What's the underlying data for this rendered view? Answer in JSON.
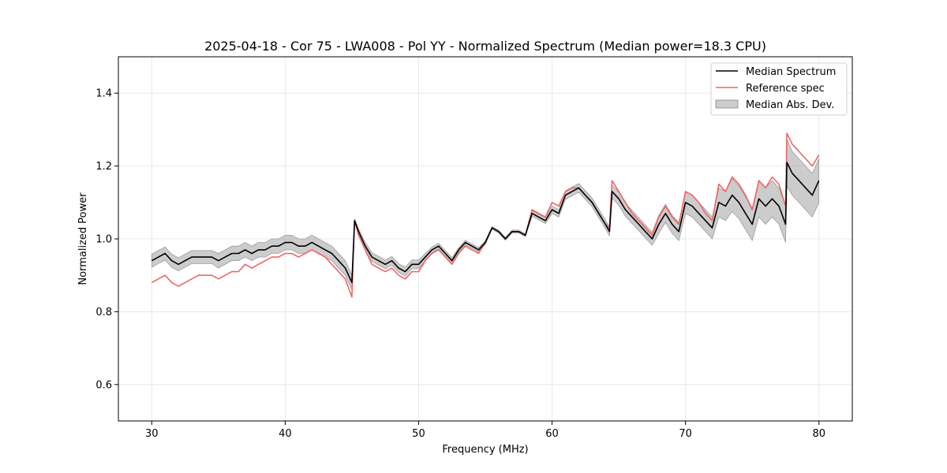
{
  "chart_data": {
    "type": "line",
    "title": "2025-04-18 - Cor 75 - LWA008 - Pol YY - Normalized Spectrum (Median power=18.3 CPU)",
    "xlabel": "Frequency (MHz)",
    "ylabel": "Normalized Power",
    "xlim": [
      27.5,
      82.5
    ],
    "ylim": [
      0.5,
      1.5
    ],
    "xticks": [
      30,
      40,
      50,
      60,
      70,
      80
    ],
    "yticks": [
      0.6,
      0.8,
      1.0,
      1.2,
      1.4
    ],
    "xtick_labels": [
      "30",
      "40",
      "50",
      "60",
      "70",
      "80"
    ],
    "ytick_labels": [
      "0.6",
      "0.8",
      "1.0",
      "1.2",
      "1.4"
    ],
    "grid": true,
    "legend_position": "top-right",
    "series": [
      {
        "name": "Median Spectrum",
        "color": "#000000",
        "x": [
          30.0,
          30.5,
          31.0,
          31.5,
          32.0,
          32.5,
          33.0,
          33.5,
          34.0,
          34.5,
          35.0,
          35.5,
          36.0,
          36.5,
          37.0,
          37.5,
          38.0,
          38.5,
          39.0,
          39.5,
          40.0,
          40.5,
          41.0,
          41.5,
          42.0,
          42.5,
          43.0,
          43.5,
          44.0,
          44.5,
          45.0,
          45.2,
          45.5,
          46.0,
          46.5,
          47.0,
          47.5,
          48.0,
          48.5,
          49.0,
          49.5,
          50.0,
          50.5,
          51.0,
          51.5,
          52.0,
          52.5,
          53.0,
          53.5,
          54.0,
          54.5,
          55.0,
          55.5,
          56.0,
          56.5,
          57.0,
          57.5,
          58.0,
          58.5,
          59.0,
          59.5,
          60.0,
          60.5,
          61.0,
          61.5,
          62.0,
          62.5,
          63.0,
          63.5,
          64.0,
          64.3,
          64.5,
          65.0,
          65.5,
          66.0,
          66.5,
          67.0,
          67.5,
          68.0,
          68.5,
          69.0,
          69.5,
          70.0,
          70.5,
          71.0,
          71.5,
          72.0,
          72.5,
          73.0,
          73.5,
          74.0,
          74.5,
          75.0,
          75.5,
          76.0,
          76.5,
          77.0,
          77.5,
          77.6,
          78.0,
          78.5,
          79.0,
          79.5,
          80.0
        ],
        "values": [
          0.94,
          0.95,
          0.96,
          0.94,
          0.93,
          0.94,
          0.95,
          0.95,
          0.95,
          0.95,
          0.94,
          0.95,
          0.96,
          0.96,
          0.97,
          0.96,
          0.97,
          0.97,
          0.98,
          0.98,
          0.99,
          0.99,
          0.98,
          0.98,
          0.99,
          0.98,
          0.97,
          0.96,
          0.94,
          0.92,
          0.88,
          1.05,
          1.02,
          0.98,
          0.95,
          0.94,
          0.93,
          0.94,
          0.92,
          0.91,
          0.93,
          0.93,
          0.95,
          0.97,
          0.98,
          0.96,
          0.94,
          0.97,
          0.99,
          0.98,
          0.97,
          0.99,
          1.03,
          1.02,
          1.0,
          1.02,
          1.02,
          1.01,
          1.07,
          1.06,
          1.05,
          1.08,
          1.07,
          1.12,
          1.13,
          1.14,
          1.12,
          1.1,
          1.07,
          1.04,
          1.02,
          1.13,
          1.11,
          1.08,
          1.06,
          1.04,
          1.02,
          1.0,
          1.04,
          1.07,
          1.04,
          1.02,
          1.1,
          1.09,
          1.07,
          1.05,
          1.03,
          1.1,
          1.09,
          1.12,
          1.1,
          1.07,
          1.04,
          1.11,
          1.09,
          1.11,
          1.09,
          1.04,
          1.21,
          1.18,
          1.16,
          1.14,
          1.12,
          1.16
        ]
      },
      {
        "name": "Reference spec",
        "color": "#f06565",
        "x": [
          30.0,
          30.5,
          31.0,
          31.5,
          32.0,
          32.5,
          33.0,
          33.5,
          34.0,
          34.5,
          35.0,
          35.5,
          36.0,
          36.5,
          37.0,
          37.5,
          38.0,
          38.5,
          39.0,
          39.5,
          40.0,
          40.5,
          41.0,
          41.5,
          42.0,
          42.5,
          43.0,
          43.5,
          44.0,
          44.5,
          45.0,
          45.2,
          45.5,
          46.0,
          46.5,
          47.0,
          47.5,
          48.0,
          48.5,
          49.0,
          49.5,
          50.0,
          50.5,
          51.0,
          51.5,
          52.0,
          52.5,
          53.0,
          53.5,
          54.0,
          54.5,
          55.0,
          55.5,
          56.0,
          56.5,
          57.0,
          57.5,
          58.0,
          58.5,
          59.0,
          59.5,
          60.0,
          60.5,
          61.0,
          61.5,
          62.0,
          62.5,
          63.0,
          63.5,
          64.0,
          64.3,
          64.5,
          65.0,
          65.5,
          66.0,
          66.5,
          67.0,
          67.5,
          68.0,
          68.5,
          69.0,
          69.5,
          70.0,
          70.5,
          71.0,
          71.5,
          72.0,
          72.5,
          73.0,
          73.5,
          74.0,
          74.5,
          75.0,
          75.5,
          76.0,
          76.5,
          77.0,
          77.5,
          77.6,
          78.0,
          78.5,
          79.0,
          79.5,
          80.0
        ],
        "values": [
          0.88,
          0.89,
          0.9,
          0.88,
          0.87,
          0.88,
          0.89,
          0.9,
          0.9,
          0.9,
          0.89,
          0.9,
          0.91,
          0.91,
          0.93,
          0.92,
          0.93,
          0.94,
          0.95,
          0.95,
          0.96,
          0.96,
          0.95,
          0.96,
          0.97,
          0.96,
          0.95,
          0.93,
          0.91,
          0.89,
          0.84,
          1.05,
          1.01,
          0.97,
          0.93,
          0.92,
          0.91,
          0.92,
          0.9,
          0.89,
          0.91,
          0.91,
          0.94,
          0.96,
          0.97,
          0.95,
          0.93,
          0.96,
          0.98,
          0.97,
          0.96,
          0.99,
          1.03,
          1.02,
          1.0,
          1.02,
          1.02,
          1.01,
          1.08,
          1.07,
          1.06,
          1.1,
          1.09,
          1.13,
          1.14,
          1.14,
          1.12,
          1.1,
          1.07,
          1.04,
          1.03,
          1.16,
          1.13,
          1.1,
          1.07,
          1.05,
          1.03,
          1.01,
          1.06,
          1.09,
          1.06,
          1.04,
          1.13,
          1.12,
          1.1,
          1.07,
          1.05,
          1.15,
          1.13,
          1.17,
          1.15,
          1.12,
          1.08,
          1.16,
          1.14,
          1.17,
          1.15,
          1.09,
          1.29,
          1.26,
          1.24,
          1.22,
          1.2,
          1.23
        ]
      }
    ],
    "band": {
      "name": "Median Abs. Dev.",
      "color": "#999999",
      "width": [
        0.018,
        0.018,
        0.018,
        0.018,
        0.018,
        0.018,
        0.018,
        0.018,
        0.018,
        0.018,
        0.02,
        0.02,
        0.02,
        0.02,
        0.02,
        0.02,
        0.02,
        0.02,
        0.02,
        0.02,
        0.02,
        0.02,
        0.02,
        0.02,
        0.02,
        0.02,
        0.02,
        0.02,
        0.02,
        0.02,
        0.02,
        0.005,
        0.008,
        0.01,
        0.012,
        0.012,
        0.012,
        0.012,
        0.012,
        0.012,
        0.012,
        0.012,
        0.01,
        0.008,
        0.008,
        0.008,
        0.008,
        0.006,
        0.006,
        0.006,
        0.006,
        0.005,
        0.004,
        0.004,
        0.004,
        0.004,
        0.004,
        0.004,
        0.008,
        0.008,
        0.008,
        0.01,
        0.01,
        0.012,
        0.012,
        0.012,
        0.012,
        0.012,
        0.012,
        0.012,
        0.012,
        0.018,
        0.018,
        0.018,
        0.018,
        0.018,
        0.018,
        0.018,
        0.025,
        0.025,
        0.025,
        0.025,
        0.03,
        0.03,
        0.03,
        0.03,
        0.03,
        0.04,
        0.04,
        0.045,
        0.045,
        0.045,
        0.045,
        0.05,
        0.05,
        0.05,
        0.05,
        0.05,
        0.065,
        0.06,
        0.06,
        0.06,
        0.06,
        0.06
      ]
    }
  }
}
